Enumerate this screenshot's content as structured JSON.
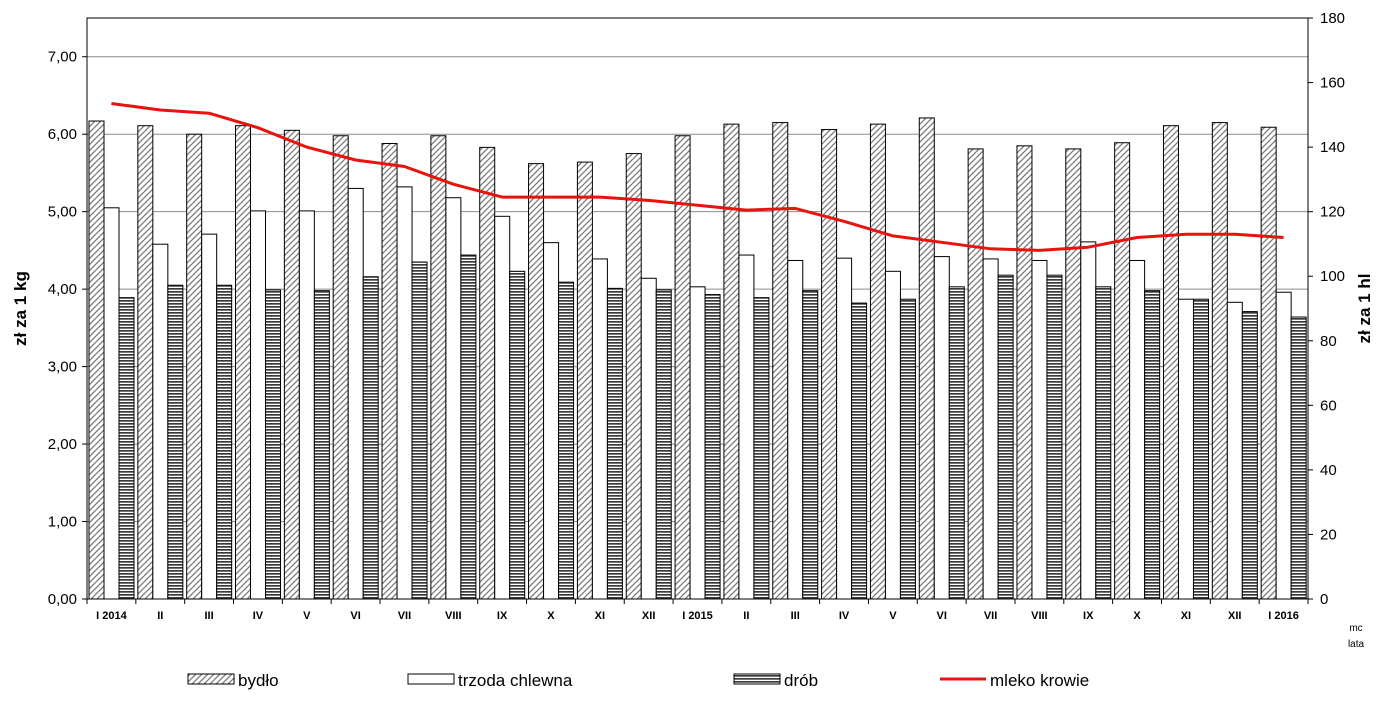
{
  "chart_data": {
    "type": "bar",
    "title": "",
    "ylabel_left": "zł za 1 kg",
    "ylabel_right": "zł za 1 hl",
    "x_unit_label": [
      "mc",
      "lata"
    ],
    "ylim_left": [
      0,
      7.5
    ],
    "ylim_right": [
      0,
      180
    ],
    "yticks_left": [
      "0,00",
      "1,00",
      "2,00",
      "3,00",
      "4,00",
      "5,00",
      "6,00",
      "7,00"
    ],
    "yticks_right": [
      "0",
      "20",
      "40",
      "60",
      "80",
      "100",
      "120",
      "140",
      "160",
      "180"
    ],
    "grid": true,
    "legend_position": "bottom",
    "categories": [
      "I 2014",
      "II",
      "III",
      "IV",
      "V",
      "VI",
      "VII",
      "VIII",
      "IX",
      "X",
      "XI",
      "XII",
      "I 2015",
      "II",
      "III",
      "IV",
      "V",
      "VI",
      "VII",
      "VIII",
      "IX",
      "X",
      "XI",
      "XII",
      "I 2016"
    ],
    "series": [
      {
        "name": "bydło",
        "kind": "bar",
        "axis": "left",
        "pattern": "diagonal-hatch",
        "values": [
          6.17,
          6.11,
          6.0,
          6.11,
          6.05,
          5.98,
          5.88,
          5.98,
          5.83,
          5.62,
          5.64,
          5.75,
          5.98,
          6.13,
          6.15,
          6.06,
          6.13,
          6.21,
          5.81,
          5.85,
          5.81,
          5.89,
          6.11,
          6.15,
          6.09
        ]
      },
      {
        "name": "trzoda chlewna",
        "kind": "bar",
        "axis": "left",
        "pattern": "white",
        "values": [
          5.05,
          4.58,
          4.71,
          5.01,
          5.01,
          5.3,
          5.32,
          5.18,
          4.94,
          4.6,
          4.39,
          4.14,
          4.03,
          4.44,
          4.37,
          4.4,
          4.23,
          4.42,
          4.39,
          4.37,
          4.61,
          4.37,
          3.87,
          3.83,
          3.96
        ]
      },
      {
        "name": "drób",
        "kind": "bar",
        "axis": "left",
        "pattern": "horizontal-stripes",
        "values": [
          3.89,
          4.05,
          4.05,
          3.99,
          3.98,
          4.16,
          4.35,
          4.44,
          4.23,
          4.09,
          4.01,
          3.99,
          3.93,
          3.89,
          3.98,
          3.82,
          3.87,
          4.03,
          4.18,
          4.18,
          4.03,
          3.98,
          3.87,
          3.71,
          3.64
        ]
      },
      {
        "name": "mleko krowie",
        "kind": "line",
        "axis": "right",
        "color": "#e8130f",
        "values": [
          153.5,
          151.5,
          150.5,
          146,
          140,
          136,
          134,
          128.5,
          124.5,
          124.5,
          124.5,
          123.5,
          122,
          120.5,
          121,
          117,
          112.5,
          110.5,
          108.5,
          108,
          109,
          112,
          113,
          113,
          112
        ]
      }
    ]
  }
}
